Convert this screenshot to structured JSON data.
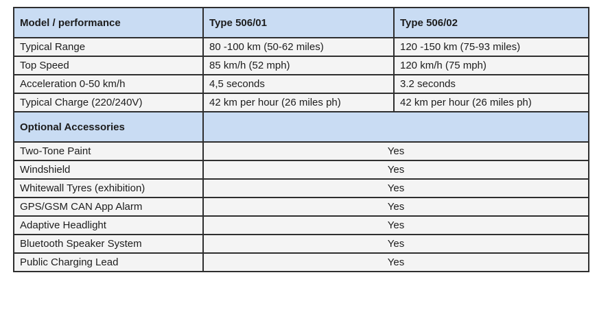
{
  "colors": {
    "header_bg": "#c9dcf3",
    "row_bg": "#f4f4f4",
    "border": "#2e2e2e",
    "text": "#1c1c1c",
    "page_bg": "#ffffff"
  },
  "table": {
    "header": {
      "col1": "Model / performance",
      "col2": "Type 506/01",
      "col3": "Type 506/02"
    },
    "performance_rows": [
      {
        "label": "Typical Range",
        "v1": "80 -100 km (50-62 miles)",
        "v2": "120 -150 km (75-93 miles)"
      },
      {
        "label": "Top Speed",
        "v1": "85 km/h (52 mph)",
        "v2": "120 km/h (75 mph)"
      },
      {
        "label": "Acceleration 0-50 km/h",
        "v1": "4,5 seconds",
        "v2": "3.2 seconds"
      },
      {
        "label": "Typical Charge (220/240V)",
        "v1": "42 km per hour (26 miles ph)",
        "v2": "42 km per hour (26 miles ph)"
      }
    ],
    "accessories_header": "Optional Accessories",
    "accessory_rows": [
      {
        "label": "Two-Tone Paint",
        "value": "Yes"
      },
      {
        "label": "Windshield",
        "value": "Yes"
      },
      {
        "label": "Whitewall Tyres (exhibition)",
        "value": "Yes"
      },
      {
        "label": "GPS/GSM CAN App Alarm",
        "value": "Yes"
      },
      {
        "label": "Adaptive Headlight",
        "value": "Yes"
      },
      {
        "label": "Bluetooth Speaker System",
        "value": "Yes"
      },
      {
        "label": "Public Charging Lead",
        "value": "Yes"
      }
    ]
  }
}
